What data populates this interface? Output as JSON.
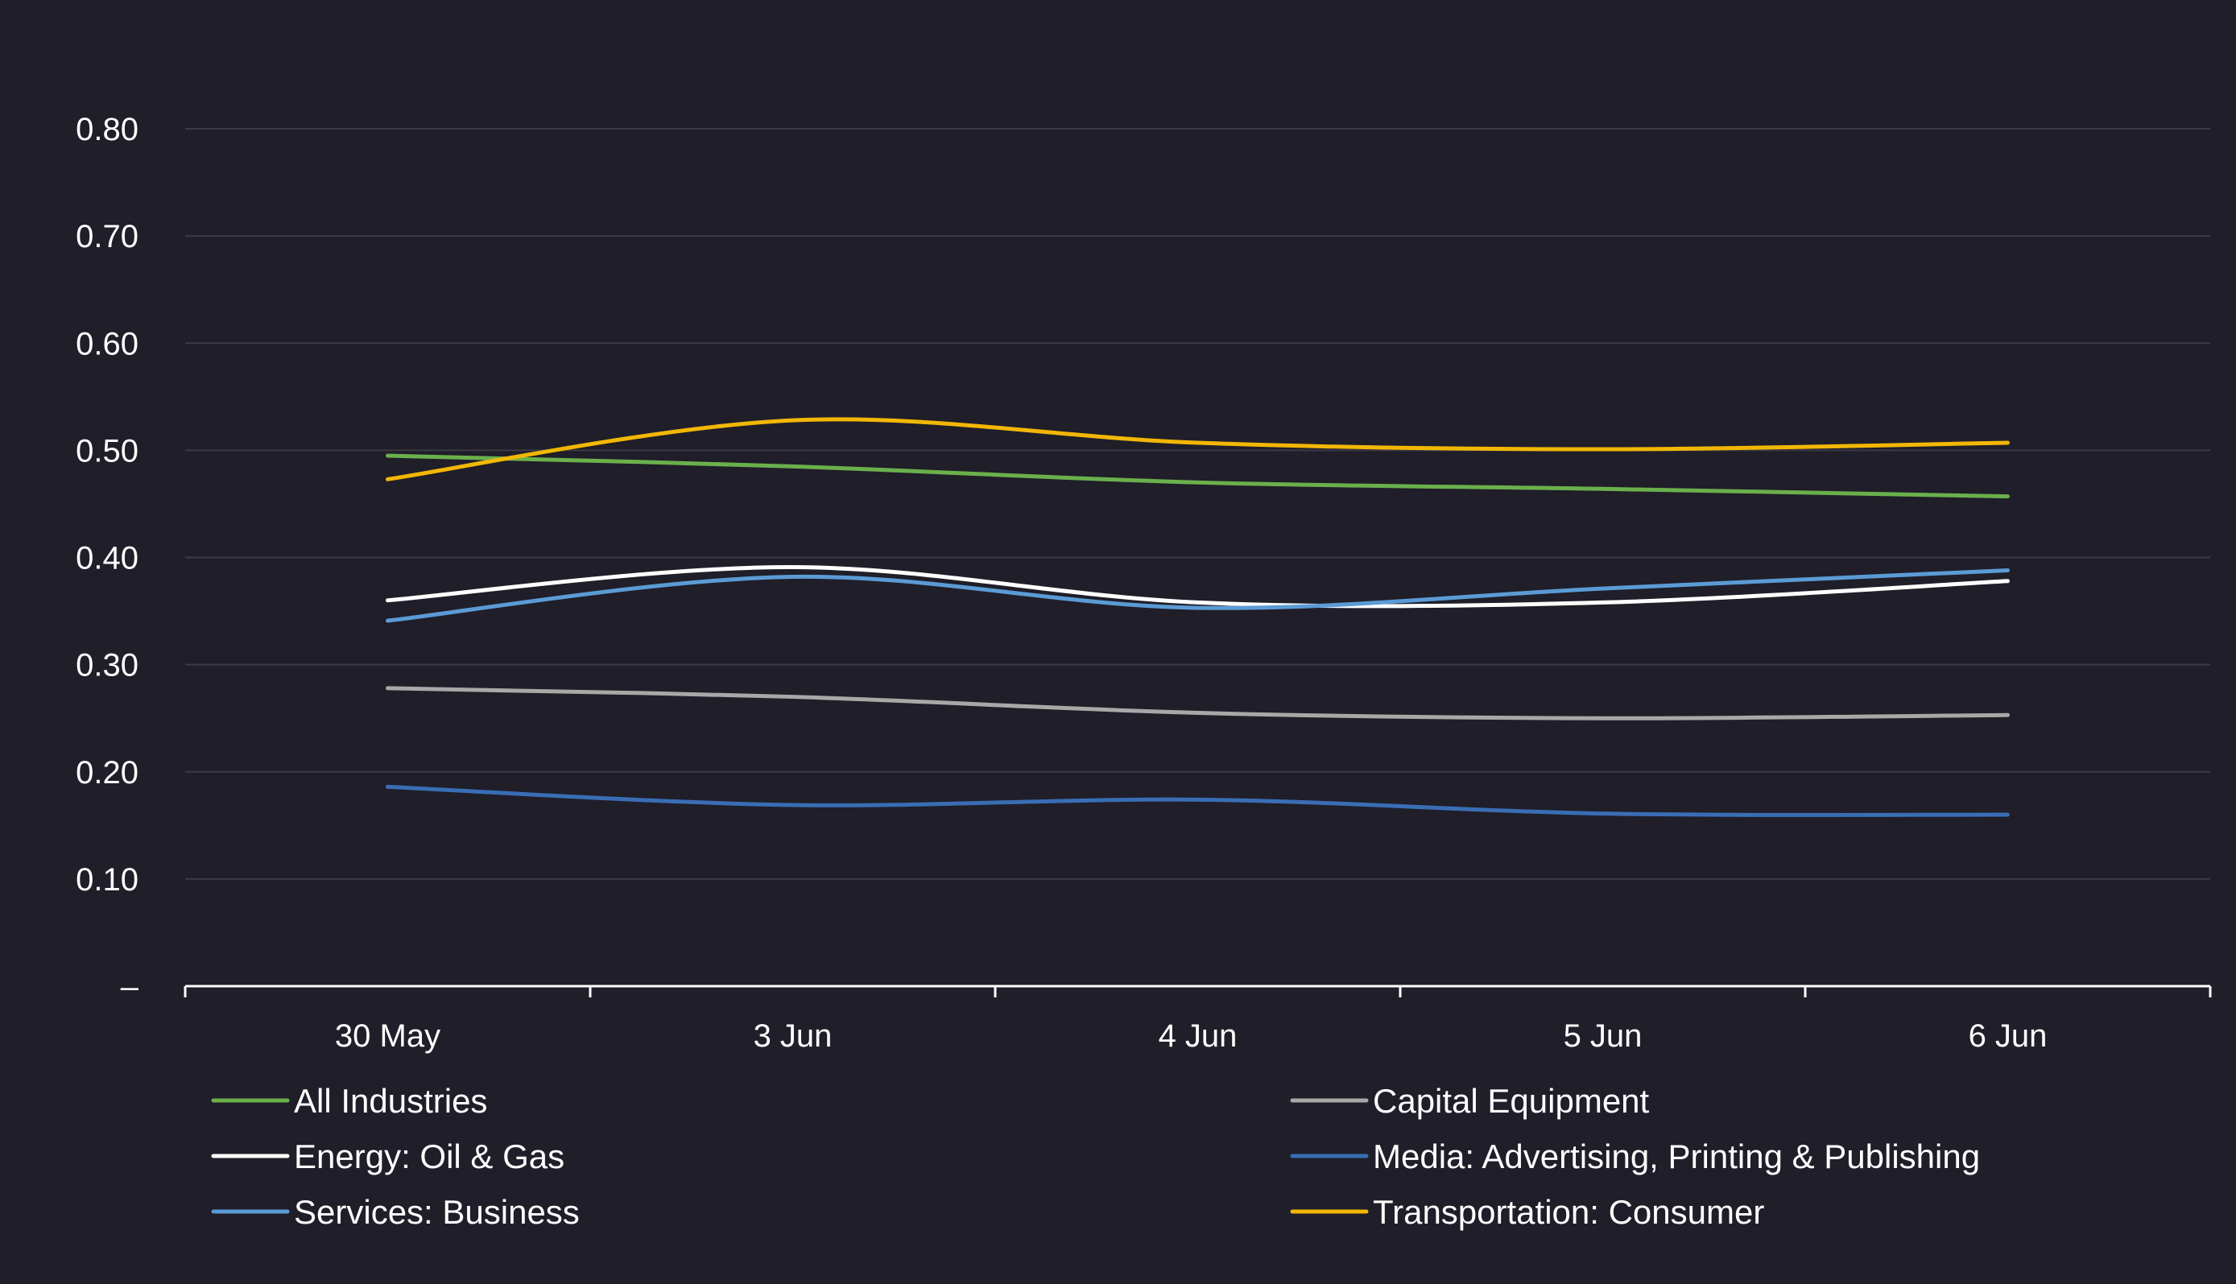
{
  "colors": {
    "background": "#1f1e29",
    "gridline": "#3b3a45",
    "axis": "#ffffff",
    "text": "#ffffff"
  },
  "chart_data": {
    "type": "line",
    "title": "",
    "xlabel": "",
    "ylabel": "",
    "categories": [
      "30 May",
      "3 Jun",
      "4 Jun",
      "5 Jun",
      "6 Jun"
    ],
    "y_ticks": [
      0,
      0.1,
      0.2,
      0.3,
      0.4,
      0.5,
      0.6,
      0.7,
      0.8
    ],
    "y_tick_labels": [
      "–",
      "0.10",
      "0.20",
      "0.30",
      "0.40",
      "0.50",
      "0.60",
      "0.70",
      "0.80"
    ],
    "ylim": [
      0,
      0.8
    ],
    "grid": true,
    "smooth": true,
    "legend_position": "bottom",
    "series": [
      {
        "name": "All Industries",
        "color": "#6ab04c",
        "values": [
          0.495,
          0.485,
          0.47,
          0.464,
          0.457
        ]
      },
      {
        "name": "Capital Equipment",
        "color": "#a8a8a8",
        "values": [
          0.278,
          0.27,
          0.255,
          0.25,
          0.253
        ]
      },
      {
        "name": "Energy: Oil & Gas",
        "color": "#ffffff",
        "values": [
          0.36,
          0.391,
          0.358,
          0.358,
          0.378
        ]
      },
      {
        "name": "Media: Advertising, Printing & Publishing",
        "color": "#3a6db5",
        "values": [
          0.186,
          0.169,
          0.174,
          0.161,
          0.16
        ]
      },
      {
        "name": "Services: Business",
        "color": "#5b9bd5",
        "values": [
          0.341,
          0.382,
          0.353,
          0.371,
          0.388
        ]
      },
      {
        "name": "Transportation: Consumer",
        "color": "#f2b705",
        "values": [
          0.473,
          0.528,
          0.507,
          0.501,
          0.507
        ]
      }
    ]
  }
}
